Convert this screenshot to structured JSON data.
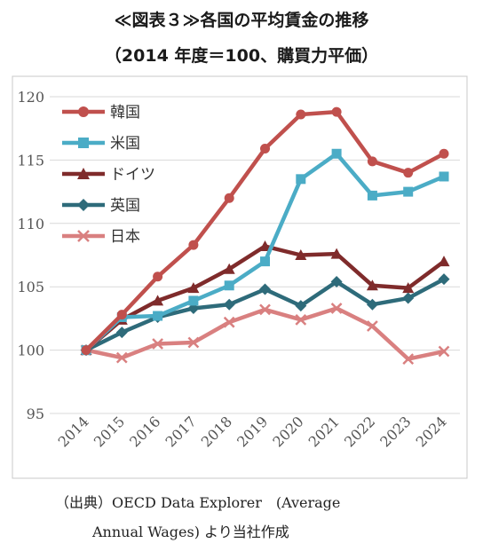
{
  "header": {
    "title": "≪図表３≫各国の平均賃金の推移",
    "subtitle": "（2014 年度＝100、購買力平価）"
  },
  "source_note": {
    "line1": "（出典）OECD Data Explorer　(Average",
    "line2": "Annual Wages)  より当社作成"
  },
  "chart_data": {
    "type": "line",
    "categories": [
      "2014",
      "2015",
      "2016",
      "2017",
      "2018",
      "2019",
      "2020",
      "2021",
      "2022",
      "2023",
      "2024"
    ],
    "ylim": [
      95,
      120
    ],
    "yticks": [
      95,
      100,
      105,
      110,
      115,
      120
    ],
    "grid": true,
    "legend_position": "top-left",
    "series": [
      {
        "name": "韓国",
        "color": "#c0504d",
        "marker": "circle",
        "values": [
          100,
          102.8,
          105.8,
          108.3,
          112.0,
          115.9,
          118.6,
          118.8,
          114.9,
          114.0,
          115.5
        ]
      },
      {
        "name": "米国",
        "color": "#4bacc6",
        "marker": "square",
        "values": [
          100,
          102.6,
          102.7,
          103.9,
          105.1,
          107.0,
          113.5,
          115.5,
          112.2,
          112.5,
          113.7
        ]
      },
      {
        "name": "ドイツ",
        "color": "#7f2b2b",
        "marker": "triangle",
        "values": [
          100,
          102.4,
          103.9,
          104.9,
          106.4,
          108.2,
          107.5,
          107.6,
          105.1,
          104.9,
          107.0
        ]
      },
      {
        "name": "英国",
        "color": "#2e6b7a",
        "marker": "diamond",
        "values": [
          100,
          101.4,
          102.6,
          103.3,
          103.6,
          104.8,
          103.5,
          105.4,
          103.6,
          104.1,
          105.6
        ]
      },
      {
        "name": "日本",
        "color": "#d98080",
        "marker": "x",
        "values": [
          100,
          99.4,
          100.5,
          100.6,
          102.2,
          103.2,
          102.4,
          103.3,
          101.9,
          99.3,
          99.9
        ]
      }
    ]
  }
}
